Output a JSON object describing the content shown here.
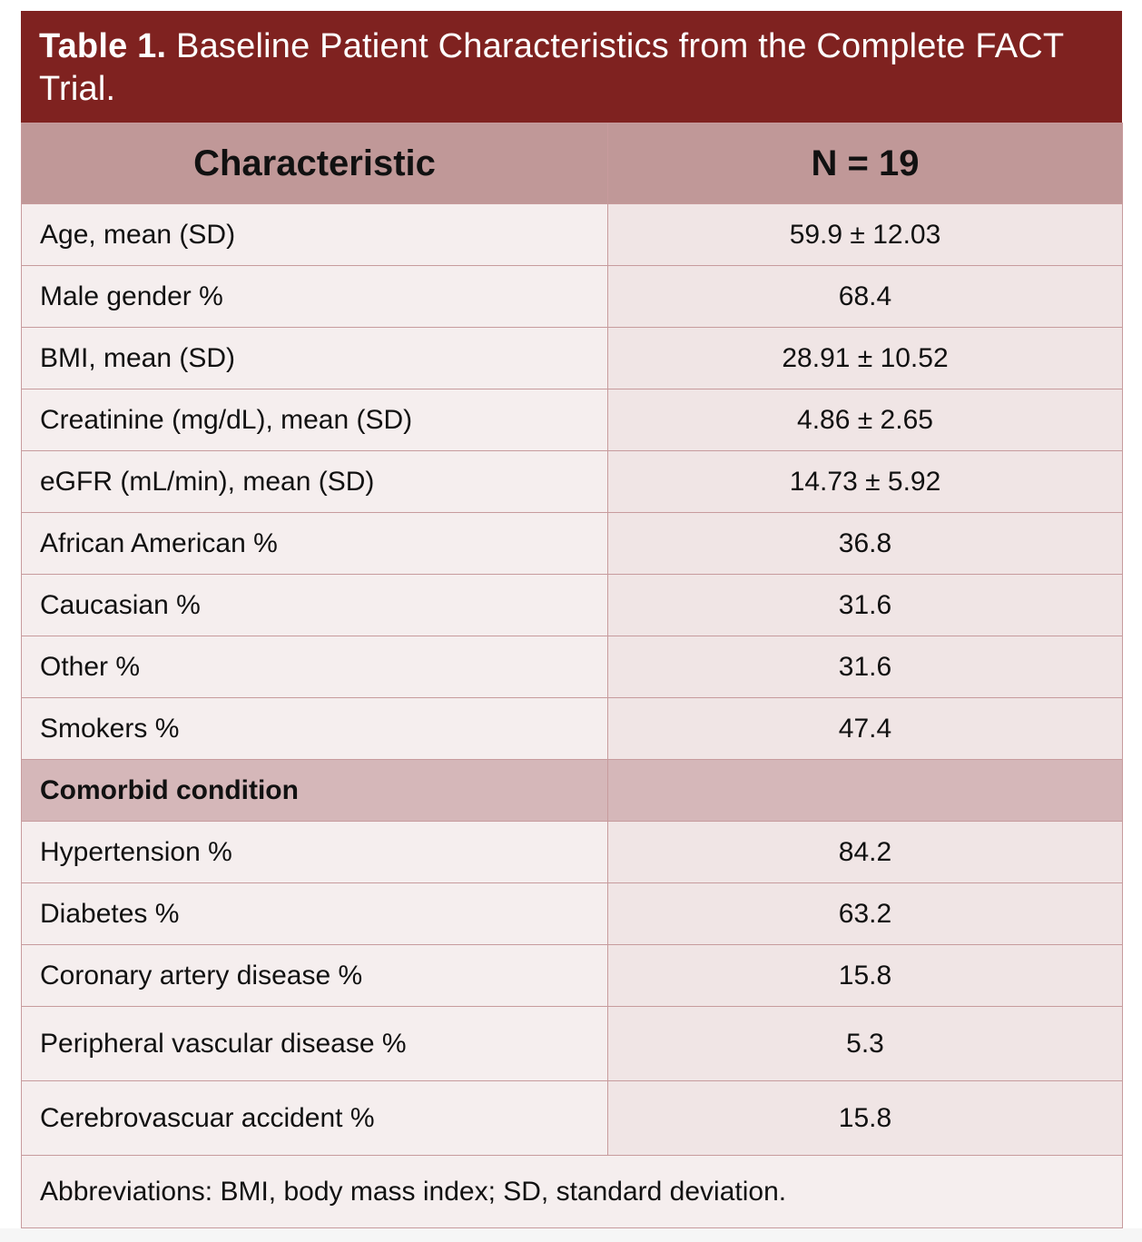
{
  "title": {
    "lead": "Table 1.",
    "text": " Baseline Patient Characteristics from the Complete FACT Trial."
  },
  "table": {
    "headers": [
      "Characteristic",
      "N = 19"
    ],
    "rows": [
      {
        "label": "Age, mean (SD)",
        "value": "59.9 ± 12.03"
      },
      {
        "label": "Male gender %",
        "value": "68.4"
      },
      {
        "label": "BMI, mean (SD)",
        "value": "28.91 ± 10.52"
      },
      {
        "label": "Creatinine (mg/dL), mean (SD)",
        "value": "4.86 ± 2.65"
      },
      {
        "label": "eGFR (mL/min), mean (SD)",
        "value": "14.73 ± 5.92"
      },
      {
        "label": "African American %",
        "value": "36.8"
      },
      {
        "label": "Caucasian %",
        "value": "31.6"
      },
      {
        "label": "Other %",
        "value": "31.6"
      },
      {
        "label": "Smokers %",
        "value": "47.4"
      }
    ],
    "section": {
      "label": "Comorbid condition",
      "value": ""
    },
    "comorbid_rows": [
      {
        "label": "Hypertension %",
        "value": "84.2"
      },
      {
        "label": "Diabetes %",
        "value": "63.2"
      },
      {
        "label": "Coronary artery disease %",
        "value": "15.8"
      },
      {
        "label": "Peripheral vascular disease %",
        "value": "5.3"
      },
      {
        "label": "Cerebrovascuar accident %",
        "value": "15.8"
      }
    ],
    "footnote": "Abbreviations: BMI, body mass index; SD, standard deviation."
  },
  "colors": {
    "title_bg": "#7f2220",
    "header_bg": "#c09898",
    "section_bg": "#d5b7b9",
    "label_cell_bg": "#f5eeee",
    "value_cell_bg": "#f0e5e5",
    "border": "#c79b9d"
  }
}
